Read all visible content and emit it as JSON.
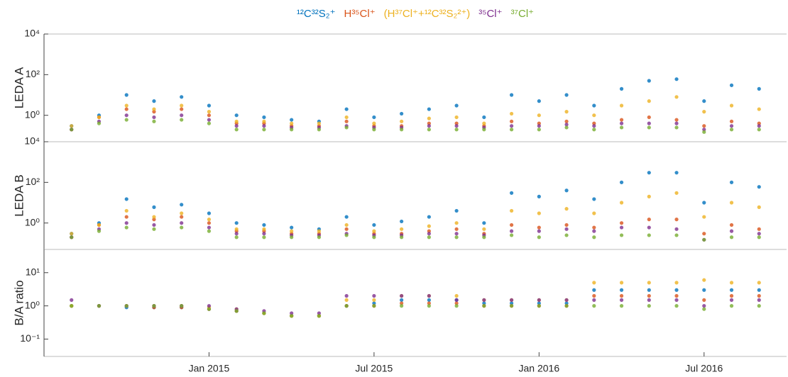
{
  "chart_data": [
    {
      "type": "scatter",
      "ylabel": "LEDA A",
      "log": true,
      "xlim": [
        "2014-07",
        "2016-10"
      ],
      "ylim": [
        0.05,
        10000
      ],
      "yticks": [
        {
          "value": 10000,
          "label": "10⁴"
        },
        {
          "value": 100,
          "label": "10²"
        },
        {
          "value": 1,
          "label": "10⁰"
        }
      ],
      "x": [
        "2014-08",
        "2014-09",
        "2014-10",
        "2014-11",
        "2014-12",
        "2015-01",
        "2015-02",
        "2015-03",
        "2015-04",
        "2015-05",
        "2015-06",
        "2015-07",
        "2015-08",
        "2015-09",
        "2015-10",
        "2015-11",
        "2015-12",
        "2016-01",
        "2016-02",
        "2016-03",
        "2016-04",
        "2016-05",
        "2016-06",
        "2016-07",
        "2016-08",
        "2016-09"
      ],
      "series": [
        {
          "name": "¹²C³²S₂⁺",
          "color": "#0072bd",
          "values": [
            0.3,
            1,
            10,
            5,
            8,
            3,
            1,
            0.8,
            0.6,
            0.5,
            2,
            0.8,
            1.2,
            2,
            3,
            0.8,
            10,
            5,
            10,
            3,
            20,
            50,
            60,
            5,
            30,
            20
          ]
        },
        {
          "name": "H³⁵Cl⁺",
          "color": "#d95319",
          "values": [
            0.2,
            0.8,
            2,
            1.5,
            2,
            1,
            0.4,
            0.4,
            0.3,
            0.3,
            0.5,
            0.3,
            0.3,
            0.4,
            0.4,
            0.3,
            0.5,
            0.4,
            0.5,
            0.4,
            0.6,
            0.8,
            0.6,
            0.3,
            0.5,
            0.4
          ]
        },
        {
          "name": "(H³⁷Cl⁺+¹²C³²S₂²⁺)",
          "color": "#edb120",
          "values": [
            0.3,
            0.8,
            3,
            2,
            3,
            1.5,
            0.5,
            0.5,
            0.4,
            0.4,
            0.8,
            0.4,
            0.5,
            0.7,
            0.8,
            0.4,
            1.2,
            1,
            1.5,
            1,
            3,
            5,
            8,
            1.5,
            3,
            2
          ]
        },
        {
          "name": "³⁵Cl⁺",
          "color": "#7e2f8e",
          "values": [
            0.2,
            0.5,
            1,
            0.8,
            1,
            0.6,
            0.3,
            0.3,
            0.25,
            0.25,
            0.3,
            0.25,
            0.25,
            0.3,
            0.3,
            0.25,
            0.3,
            0.3,
            0.35,
            0.3,
            0.4,
            0.4,
            0.4,
            0.2,
            0.3,
            0.3
          ]
        },
        {
          "name": "³⁷Cl⁺",
          "color": "#77ac30",
          "values": [
            0.2,
            0.4,
            0.6,
            0.5,
            0.6,
            0.4,
            0.2,
            0.2,
            0.2,
            0.2,
            0.25,
            0.2,
            0.2,
            0.2,
            0.2,
            0.2,
            0.2,
            0.2,
            0.25,
            0.2,
            0.25,
            0.25,
            0.25,
            0.15,
            0.2,
            0.2
          ]
        }
      ]
    },
    {
      "type": "scatter",
      "ylabel": "LEDA B",
      "log": true,
      "xlim": [
        "2014-07",
        "2016-10"
      ],
      "ylim": [
        0.05,
        10000
      ],
      "yticks": [
        {
          "value": 10000,
          "label": "10⁴"
        },
        {
          "value": 100,
          "label": "10²"
        },
        {
          "value": 1,
          "label": "10⁰"
        }
      ],
      "x": [
        "2014-08",
        "2014-09",
        "2014-10",
        "2014-11",
        "2014-12",
        "2015-01",
        "2015-02",
        "2015-03",
        "2015-04",
        "2015-05",
        "2015-06",
        "2015-07",
        "2015-08",
        "2015-09",
        "2015-10",
        "2015-11",
        "2015-12",
        "2016-01",
        "2016-02",
        "2016-03",
        "2016-04",
        "2016-05",
        "2016-06",
        "2016-07",
        "2016-08",
        "2016-09"
      ],
      "series": [
        {
          "color": "#0072bd",
          "values": [
            0.3,
            1,
            15,
            6,
            8,
            3,
            1,
            0.8,
            0.6,
            0.5,
            2,
            0.8,
            1.2,
            2,
            4,
            1,
            30,
            20,
            40,
            15,
            100,
            300,
            300,
            10,
            100,
            60
          ]
        },
        {
          "color": "#d95319",
          "values": [
            0.2,
            0.8,
            2,
            1.5,
            2,
            1,
            0.4,
            0.4,
            0.3,
            0.3,
            0.5,
            0.3,
            0.3,
            0.4,
            0.5,
            0.3,
            0.8,
            0.6,
            0.8,
            0.6,
            1,
            1.5,
            1.5,
            0.3,
            0.8,
            0.5
          ]
        },
        {
          "color": "#edb120",
          "values": [
            0.3,
            0.8,
            4,
            2,
            3,
            1.5,
            0.5,
            0.5,
            0.4,
            0.4,
            0.8,
            0.4,
            0.5,
            0.7,
            1,
            0.5,
            4,
            3,
            5,
            3,
            10,
            20,
            30,
            2,
            10,
            6
          ]
        },
        {
          "color": "#7e2f8e",
          "values": [
            0.2,
            0.5,
            1,
            0.8,
            1,
            0.6,
            0.3,
            0.3,
            0.25,
            0.25,
            0.3,
            0.25,
            0.25,
            0.3,
            0.3,
            0.25,
            0.4,
            0.4,
            0.5,
            0.4,
            0.6,
            0.6,
            0.5,
            0.15,
            0.4,
            0.3
          ]
        },
        {
          "color": "#77ac30",
          "values": [
            0.2,
            0.4,
            0.6,
            0.5,
            0.6,
            0.4,
            0.2,
            0.2,
            0.2,
            0.2,
            0.25,
            0.2,
            0.2,
            0.2,
            0.2,
            0.2,
            0.25,
            0.2,
            0.25,
            0.2,
            0.25,
            0.25,
            0.25,
            0.15,
            0.2,
            0.2
          ]
        }
      ]
    },
    {
      "type": "scatter",
      "ylabel": "B/A ratio",
      "log": true,
      "xlim": [
        "2014-07",
        "2016-10"
      ],
      "ylim": [
        0.03,
        50
      ],
      "yticks": [
        {
          "value": 10,
          "label": "10¹"
        },
        {
          "value": 1,
          "label": "10⁰"
        },
        {
          "value": 0.1,
          "label": "10⁻¹"
        }
      ],
      "xticks": [
        {
          "value": "2015-01",
          "label": "Jan 2015"
        },
        {
          "value": "2015-07",
          "label": "Jul 2015"
        },
        {
          "value": "2016-01",
          "label": "Jan 2016"
        },
        {
          "value": "2016-07",
          "label": "Jul 2016"
        }
      ],
      "x": [
        "2014-08",
        "2014-09",
        "2014-10",
        "2014-11",
        "2014-12",
        "2015-01",
        "2015-02",
        "2015-03",
        "2015-04",
        "2015-05",
        "2015-06",
        "2015-07",
        "2015-08",
        "2015-09",
        "2015-10",
        "2015-11",
        "2015-12",
        "2016-01",
        "2016-02",
        "2016-03",
        "2016-04",
        "2016-05",
        "2016-06",
        "2016-07",
        "2016-08",
        "2016-09"
      ],
      "series": [
        {
          "color": "#0072bd",
          "values": [
            1,
            1,
            0.9,
            0.9,
            0.9,
            0.8,
            0.7,
            0.6,
            0.5,
            0.5,
            1,
            1.2,
            1.5,
            1.5,
            1.5,
            1.2,
            1.2,
            1.2,
            1.2,
            3,
            3,
            3,
            3,
            3,
            3,
            3
          ]
        },
        {
          "color": "#d95319",
          "values": [
            1,
            1,
            1,
            0.9,
            0.9,
            0.8,
            0.7,
            0.6,
            0.5,
            0.5,
            1,
            1,
            1.2,
            1.2,
            1.2,
            1,
            1,
            1,
            1,
            2,
            2,
            2,
            2,
            1.5,
            2,
            2
          ]
        },
        {
          "color": "#edb120",
          "values": [
            1,
            1,
            1,
            1,
            1,
            0.9,
            0.8,
            0.6,
            0.5,
            0.5,
            1.5,
            1.5,
            2,
            2,
            2,
            1.5,
            1.5,
            1.5,
            1.5,
            5,
            5,
            5,
            5,
            6,
            5,
            5
          ]
        },
        {
          "color": "#7e2f8e",
          "values": [
            1.5,
            1,
            1,
            1,
            1,
            1,
            0.8,
            0.7,
            0.6,
            0.6,
            2,
            2,
            2,
            2,
            1.5,
            1.5,
            1.5,
            1.5,
            1.5,
            1.5,
            1.5,
            1.5,
            1.5,
            1,
            1.5,
            1.5
          ]
        },
        {
          "color": "#77ac30",
          "values": [
            1,
            1,
            1,
            1,
            1,
            0.8,
            0.7,
            0.6,
            0.5,
            0.5,
            1,
            1,
            1,
            1,
            1,
            1,
            1,
            1,
            1,
            1,
            1,
            1,
            1,
            0.8,
            1,
            1
          ]
        }
      ]
    }
  ]
}
